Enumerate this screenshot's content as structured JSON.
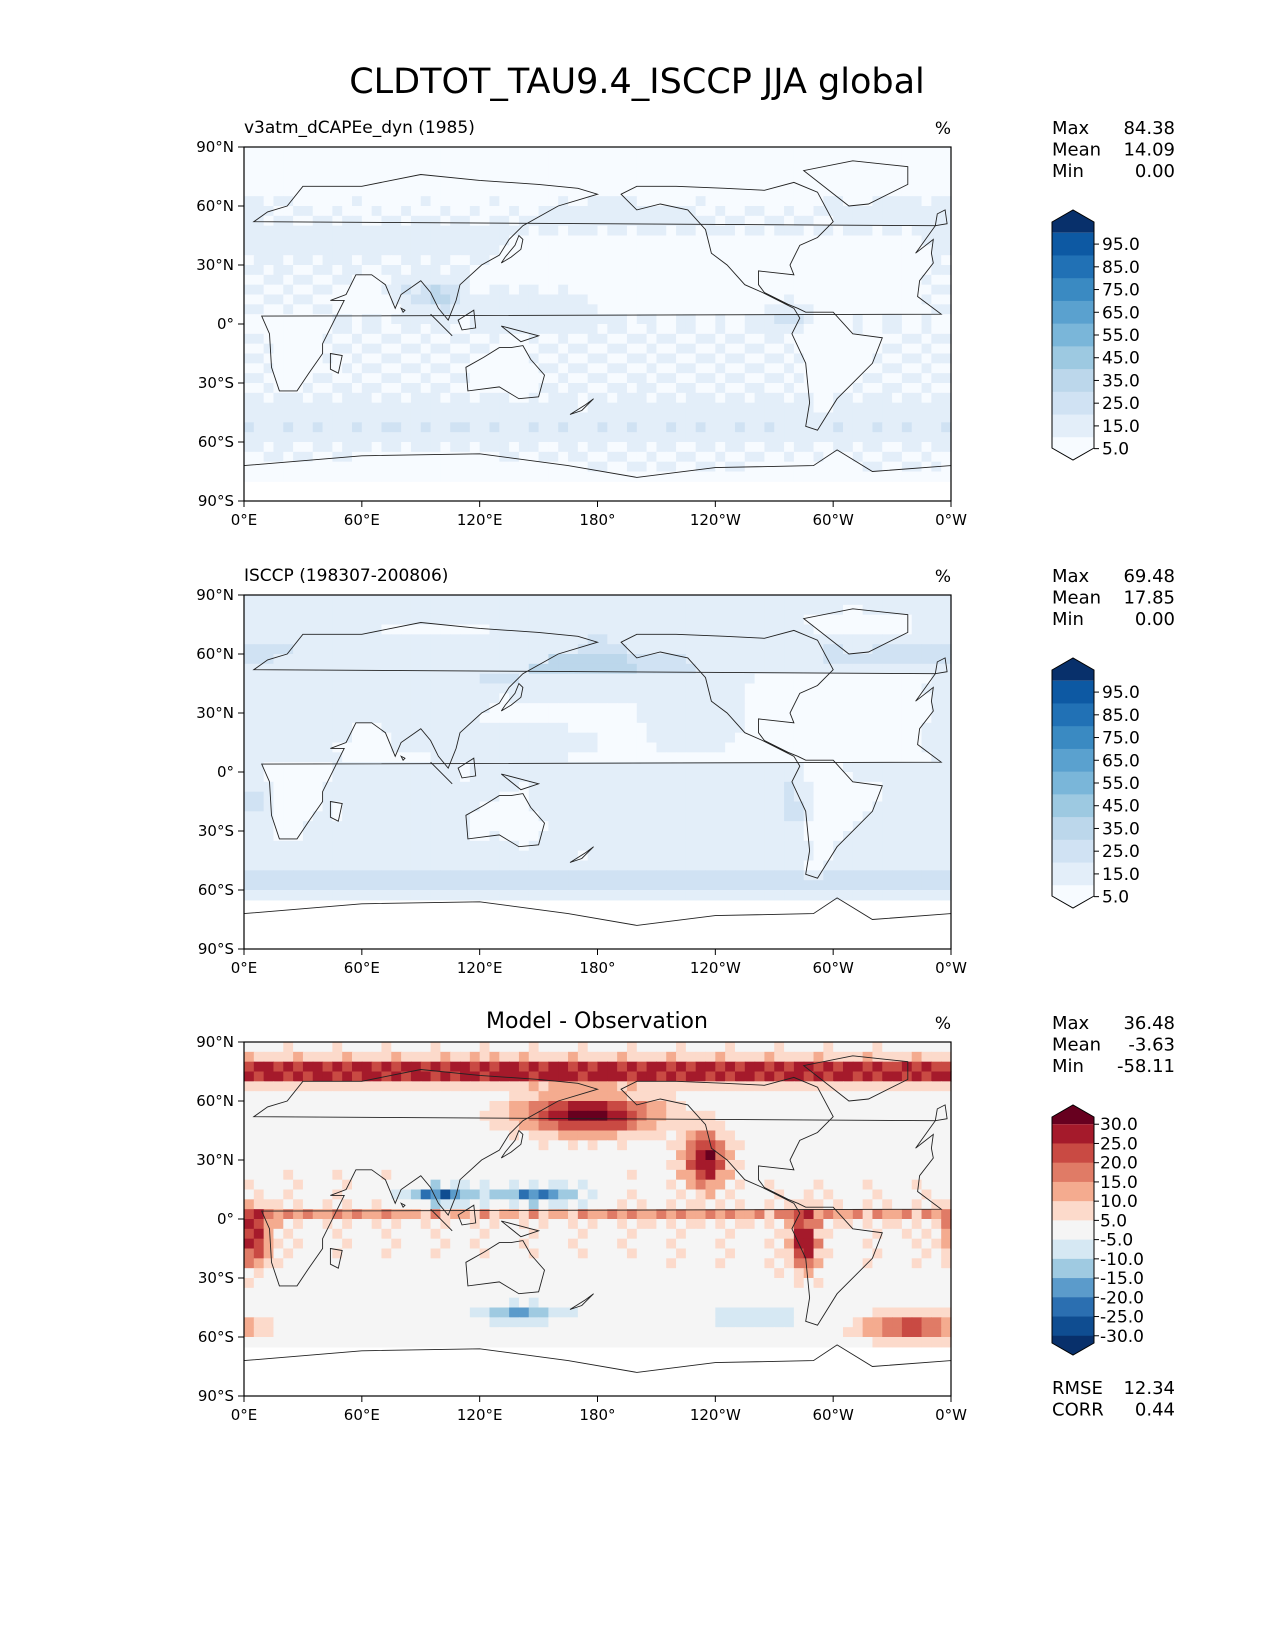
{
  "figure_title": "CLDTOT_TAU9.4_ISCCP JJA global",
  "chart_data": [
    {
      "type": "heatmap",
      "title": "v3atm_dCAPEe_dyn (1985)",
      "units": "%",
      "stats": [
        {
          "label": "Max",
          "value": "84.38"
        },
        {
          "label": "Mean",
          "value": "14.09"
        },
        {
          "label": "Min",
          "value": "0.00"
        }
      ],
      "colorbar": {
        "levels": [
          "5.0",
          "15.0",
          "25.0",
          "35.0",
          "45.0",
          "55.0",
          "65.0",
          "75.0",
          "85.0",
          "95.0"
        ],
        "colors": [
          "#f7fbff",
          "#e3eef9",
          "#d0e2f3",
          "#bcd7eb",
          "#9dc9e1",
          "#7ab6d9",
          "#5aa1cf",
          "#3a8ac2",
          "#2171b5",
          "#0d59a3",
          "#08306b"
        ],
        "extend": "both"
      },
      "xticks": [
        "0°E",
        "60°E",
        "120°E",
        "180°",
        "120°W",
        "60°W",
        "0°W"
      ],
      "yticks": [
        "90°N",
        "60°N",
        "30°N",
        "0°",
        "30°S",
        "60°S",
        "90°S"
      ],
      "xlim": [
        0,
        360
      ],
      "ylim": [
        -90,
        90
      ],
      "field": "model",
      "colors": {
        "low": "#f7fbff",
        "high": "#08306b"
      }
    },
    {
      "type": "heatmap",
      "title": "ISCCP (198307-200806)",
      "units": "%",
      "stats": [
        {
          "label": "Max",
          "value": "69.48"
        },
        {
          "label": "Mean",
          "value": "17.85"
        },
        {
          "label": "Min",
          "value": "0.00"
        }
      ],
      "colorbar": {
        "levels": [
          "5.0",
          "15.0",
          "25.0",
          "35.0",
          "45.0",
          "55.0",
          "65.0",
          "75.0",
          "85.0",
          "95.0"
        ],
        "colors": [
          "#f7fbff",
          "#e3eef9",
          "#d0e2f3",
          "#bcd7eb",
          "#9dc9e1",
          "#7ab6d9",
          "#5aa1cf",
          "#3a8ac2",
          "#2171b5",
          "#0d59a3",
          "#08306b"
        ],
        "extend": "both"
      },
      "xticks": [
        "0°E",
        "60°E",
        "120°E",
        "180°",
        "120°W",
        "60°W",
        "0°W"
      ],
      "yticks": [
        "90°N",
        "60°N",
        "30°N",
        "0°",
        "30°S",
        "60°S",
        "90°S"
      ],
      "xlim": [
        0,
        360
      ],
      "ylim": [
        -90,
        90
      ],
      "field": "obs",
      "colors": {
        "low": "#f7fbff",
        "high": "#08306b"
      }
    },
    {
      "type": "heatmap",
      "title": "Model - Observation",
      "units": "%",
      "stats": [
        {
          "label": "Max",
          "value": "36.48"
        },
        {
          "label": "Mean",
          "value": "-3.63"
        },
        {
          "label": "Min",
          "value": "-58.11"
        }
      ],
      "colorbar": {
        "levels": [
          "30.0",
          "25.0",
          "20.0",
          "15.0",
          "10.0",
          "5.0",
          "-5.0",
          "-10.0",
          "-15.0",
          "-20.0",
          "-25.0",
          "-30.0"
        ],
        "colors": [
          "#08306b",
          "#0f4d91",
          "#2b6fb1",
          "#5b9bcb",
          "#9fcae1",
          "#d6e8f3",
          "#f5f5f5",
          "#fcdacb",
          "#f4ab8f",
          "#e07b66",
          "#c94a43",
          "#a51a2b",
          "#67001f"
        ],
        "extend": "both"
      },
      "xticks": [
        "0°E",
        "60°E",
        "120°E",
        "180°",
        "120°W",
        "60°W",
        "0°W"
      ],
      "yticks": [
        "90°N",
        "60°N",
        "30°N",
        "0°",
        "30°S",
        "60°S",
        "90°S"
      ],
      "xlim": [
        0,
        360
      ],
      "ylim": [
        -90,
        90
      ],
      "field": "diff",
      "extra_stats": [
        {
          "label": "RMSE",
          "value": "12.34"
        },
        {
          "label": "CORR",
          "value": "0.44"
        }
      ]
    }
  ]
}
